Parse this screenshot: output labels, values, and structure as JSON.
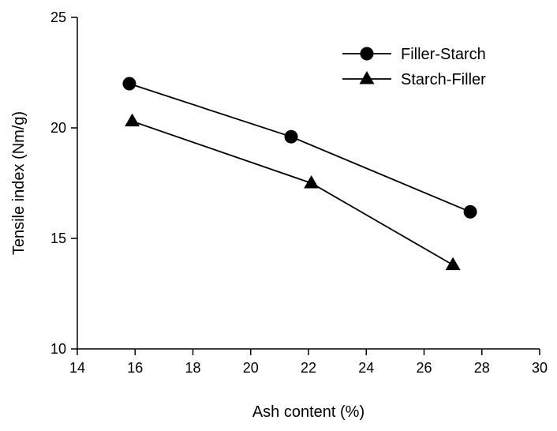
{
  "chart_data": {
    "type": "line",
    "title": "",
    "xlabel": "Ash content (%)",
    "ylabel": "Tensile index (Nm/g)",
    "xlim": [
      14,
      30
    ],
    "ylim": [
      10,
      25
    ],
    "x_ticks": [
      14,
      16,
      18,
      20,
      22,
      24,
      26,
      28,
      30
    ],
    "y_ticks": [
      10,
      15,
      20,
      25
    ],
    "grid": false,
    "legend_position": "top-right",
    "series": [
      {
        "name": "Filler-Starch",
        "marker": "circle",
        "color": "#000000",
        "x": [
          15.8,
          21.4,
          27.6
        ],
        "y": [
          22.0,
          19.6,
          16.2
        ]
      },
      {
        "name": "Starch-Filler",
        "marker": "triangle",
        "color": "#000000",
        "x": [
          15.9,
          22.1,
          27.0
        ],
        "y": [
          20.3,
          17.5,
          13.8
        ]
      }
    ]
  }
}
